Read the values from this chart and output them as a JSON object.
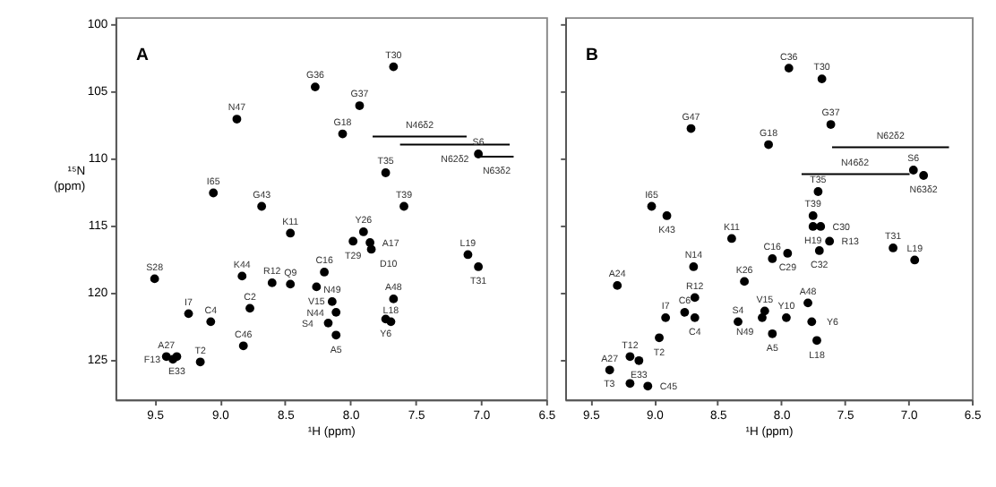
{
  "chart_data": [
    {
      "type": "scatter",
      "xlabel": "¹H (ppm)",
      "ylabel": "¹⁵N (ppm)",
      "xlim": [
        9.8,
        6.5
      ],
      "xticks": [
        9.5,
        {
          "value": 9,
          "label": "9.0"
        },
        8.5,
        {
          "value": 8,
          "label": "8.0"
        },
        7.5,
        {
          "value": 7,
          "label": "7.0"
        },
        6.5
      ],
      "ylim": [
        128,
        99.5
      ],
      "yticks": [
        100,
        105,
        110,
        115,
        120,
        125
      ],
      "marker": "circle",
      "grid": false,
      "series": [
        {
          "color": "#000000",
          "x": [
            7.67,
            8.27,
            7.93,
            8.87,
            8.06,
            7.02,
            7.73,
            9.05,
            8.68,
            7.59,
            8.46,
            7.9,
            7.98,
            7.85,
            7.84,
            7.1,
            7.02,
            9.5,
            8.2,
            8.83,
            8.6,
            8.46,
            8.26,
            7.67,
            8.14,
            9.24,
            8.77,
            9.07,
            8.11,
            7.73,
            7.69,
            8.17,
            8.11,
            8.82,
            9.41,
            9.33,
            9.36,
            9.15
          ],
          "values": [
            103.2,
            104.7,
            106.1,
            107.1,
            108.2,
            109.7,
            111.1,
            112.6,
            113.6,
            113.6,
            115.6,
            115.5,
            116.2,
            116.3,
            116.8,
            117.2,
            118.1,
            119.0,
            118.5,
            118.8,
            119.3,
            119.4,
            119.6,
            120.5,
            120.7,
            121.6,
            121.2,
            122.2,
            121.5,
            122.0,
            122.2,
            122.3,
            123.2,
            124.0,
            124.8,
            124.8,
            125.0,
            125.2
          ]
        },
        {
          "type": "line",
          "marker": "none",
          "color": "#000000",
          "x": [
            7.83,
            7.11
          ],
          "values": [
            108.4,
            108.4
          ]
        },
        {
          "type": "line",
          "marker": "none",
          "color": "#000000",
          "x": [
            7.62,
            6.78
          ],
          "values": [
            109.0,
            109.0
          ]
        },
        {
          "type": "line",
          "marker": "none",
          "color": "#000000",
          "x": [
            7.02,
            6.75
          ],
          "values": [
            109.9,
            109.9
          ]
        }
      ],
      "annotations": [
        "A",
        {
          "text": "T30",
          "x": 7.67,
          "y": 103.2
        },
        {
          "text": "G36",
          "x": 8.27,
          "y": 104.7
        },
        {
          "text": "G37",
          "x": 7.93,
          "y": 106.1
        },
        {
          "text": "N47",
          "x": 8.87,
          "y": 107.1
        },
        {
          "text": "G18",
          "x": 8.06,
          "y": 108.2
        },
        {
          "text": "S6",
          "x": 7.02,
          "y": 109.7
        },
        {
          "text": "T35",
          "x": 7.73,
          "y": 111.1
        },
        {
          "text": "I65",
          "x": 9.05,
          "y": 112.6
        },
        {
          "text": "G43",
          "x": 8.68,
          "y": 113.6
        },
        {
          "text": "T39",
          "x": 7.59,
          "y": 113.6
        },
        {
          "text": "K11",
          "x": 8.46,
          "y": 115.6
        },
        {
          "text": "Y26",
          "x": 7.9,
          "y": 115.5
        },
        {
          "text": "T29",
          "x": 7.98,
          "y": 116.2
        },
        {
          "text": "A17",
          "x": 7.85,
          "y": 116.3
        },
        {
          "text": "D10",
          "x": 7.84,
          "y": 116.8
        },
        {
          "text": "L19",
          "x": 7.1,
          "y": 117.2
        },
        {
          "text": "T31",
          "x": 7.02,
          "y": 118.1
        },
        {
          "text": "S28",
          "x": 9.5,
          "y": 119.0
        },
        {
          "text": "C16",
          "x": 8.2,
          "y": 118.5
        },
        {
          "text": "K44",
          "x": 8.83,
          "y": 118.8
        },
        {
          "text": "R12",
          "x": 8.6,
          "y": 119.3
        },
        {
          "text": "Q9",
          "x": 8.46,
          "y": 119.4
        },
        {
          "text": "V15",
          "x": 8.26,
          "y": 119.6
        },
        {
          "text": "A48",
          "x": 7.67,
          "y": 120.5
        },
        {
          "text": "N49",
          "x": 8.14,
          "y": 120.7
        },
        {
          "text": "I7",
          "x": 9.24,
          "y": 121.6
        },
        {
          "text": "C2",
          "x": 8.77,
          "y": 121.2
        },
        {
          "text": "C4",
          "x": 9.07,
          "y": 122.2
        },
        {
          "text": "N44",
          "x": 8.11,
          "y": 121.5
        },
        {
          "text": "Y6",
          "x": 7.73,
          "y": 122.0
        },
        {
          "text": "L18",
          "x": 7.69,
          "y": 122.2
        },
        {
          "text": "S4",
          "x": 8.17,
          "y": 122.3
        },
        {
          "text": "A5",
          "x": 8.11,
          "y": 123.2
        },
        {
          "text": "C46",
          "x": 8.82,
          "y": 124.0
        },
        {
          "text": "A27",
          "x": 9.41,
          "y": 124.8
        },
        {
          "text": "E33",
          "x": 9.33,
          "y": 124.8
        },
        {
          "text": "F13",
          "x": 9.36,
          "y": 125.0
        },
        {
          "text": "T2",
          "x": 9.15,
          "y": 125.2
        },
        {
          "text": "N46δ2",
          "x": 7.47,
          "y": 108.4
        },
        {
          "text": "N62δ2",
          "x": 7.2,
          "y": 109.0
        },
        {
          "text": "N63δ2",
          "x": 6.88,
          "y": 109.9
        }
      ]
    },
    {
      "type": "scatter",
      "xlabel": "¹H (ppm)",
      "xlim": [
        9.7,
        6.5
      ],
      "xticks": [
        9.5,
        {
          "value": 9,
          "label": "9.0"
        },
        8.5,
        {
          "value": 8,
          "label": "8.0"
        },
        7.5,
        {
          "value": 7,
          "label": "7.0"
        },
        6.5
      ],
      "ylim": [
        128,
        99.5
      ],
      "yticks": [
        100,
        105,
        110,
        115,
        120,
        125
      ],
      "tick_labels": "x",
      "marker": "circle",
      "grid": false,
      "series": [
        {
          "color": "#000000",
          "x": [
            7.94,
            7.68,
            7.61,
            8.71,
            8.1,
            6.96,
            6.88,
            7.71,
            7.75,
            9.02,
            8.9,
            8.39,
            7.75,
            7.69,
            7.62,
            8.07,
            7.95,
            7.7,
            7.12,
            6.95,
            8.69,
            9.29,
            8.29,
            8.68,
            7.79,
            8.91,
            8.76,
            8.68,
            8.13,
            7.96,
            7.76,
            8.34,
            8.15,
            8.07,
            7.72,
            8.96,
            9.19,
            9.12,
            9.35,
            9.19,
            9.05
          ],
          "values": [
            103.3,
            104.1,
            107.5,
            107.8,
            109.0,
            110.9,
            111.3,
            112.5,
            114.3,
            113.6,
            114.3,
            116.0,
            115.1,
            115.1,
            116.2,
            117.5,
            117.1,
            116.9,
            116.7,
            117.6,
            118.1,
            119.5,
            119.2,
            120.4,
            120.8,
            121.9,
            121.5,
            121.9,
            121.4,
            121.9,
            122.2,
            122.2,
            121.9,
            123.1,
            123.6,
            123.4,
            124.8,
            125.1,
            125.8,
            126.8,
            127.0
          ]
        },
        {
          "type": "line",
          "marker": "none",
          "color": "#000000",
          "x": [
            7.6,
            6.68
          ],
          "values": [
            109.2,
            109.2
          ]
        },
        {
          "type": "line",
          "marker": "none",
          "color": "#000000",
          "x": [
            7.84,
            6.99
          ],
          "values": [
            111.2,
            111.2
          ]
        }
      ],
      "annotations": [
        "B",
        {
          "text": "C36",
          "x": 7.94,
          "y": 103.3
        },
        {
          "text": "T30",
          "x": 7.68,
          "y": 104.1
        },
        {
          "text": "G37",
          "x": 7.61,
          "y": 107.5
        },
        {
          "text": "G47",
          "x": 8.71,
          "y": 107.8
        },
        {
          "text": "G18",
          "x": 8.1,
          "y": 109.0
        },
        {
          "text": "S6",
          "x": 6.96,
          "y": 110.9
        },
        {
          "text": "T35",
          "x": 7.71,
          "y": 112.5
        },
        {
          "text": "T39",
          "x": 7.75,
          "y": 114.3
        },
        {
          "text": "I65",
          "x": 9.02,
          "y": 113.6
        },
        {
          "text": "K43",
          "x": 8.9,
          "y": 114.3
        },
        {
          "text": "K11",
          "x": 8.39,
          "y": 116.0
        },
        {
          "text": "H19",
          "x": 7.75,
          "y": 115.1
        },
        {
          "text": "C30",
          "x": 7.69,
          "y": 115.1
        },
        {
          "text": "R13",
          "x": 7.62,
          "y": 116.2
        },
        {
          "text": "C16",
          "x": 8.07,
          "y": 117.5
        },
        {
          "text": "C29",
          "x": 7.95,
          "y": 117.1
        },
        {
          "text": "C32",
          "x": 7.7,
          "y": 116.9
        },
        {
          "text": "T31",
          "x": 7.12,
          "y": 116.7
        },
        {
          "text": "L19",
          "x": 6.95,
          "y": 117.6
        },
        {
          "text": "N14",
          "x": 8.69,
          "y": 118.1
        },
        {
          "text": "A24",
          "x": 9.29,
          "y": 119.5
        },
        {
          "text": "K26",
          "x": 8.29,
          "y": 119.2
        },
        {
          "text": "R12",
          "x": 8.68,
          "y": 120.4
        },
        {
          "text": "A48",
          "x": 7.79,
          "y": 120.8
        },
        {
          "text": "I7",
          "x": 8.91,
          "y": 121.9
        },
        {
          "text": "C6",
          "x": 8.76,
          "y": 121.5
        },
        {
          "text": "C4",
          "x": 8.68,
          "y": 121.9
        },
        {
          "text": "V15",
          "x": 8.13,
          "y": 121.4
        },
        {
          "text": "Y10",
          "x": 7.96,
          "y": 121.9
        },
        {
          "text": "Y6",
          "x": 7.76,
          "y": 122.2
        },
        {
          "text": "S4",
          "x": 8.34,
          "y": 122.2
        },
        {
          "text": "N49",
          "x": 8.15,
          "y": 121.9
        },
        {
          "text": "A5",
          "x": 8.07,
          "y": 123.1
        },
        {
          "text": "L18",
          "x": 7.72,
          "y": 123.6
        },
        {
          "text": "T2",
          "x": 8.96,
          "y": 123.4
        },
        {
          "text": "T12",
          "x": 9.19,
          "y": 124.8
        },
        {
          "text": "E33",
          "x": 9.12,
          "y": 125.1
        },
        {
          "text": "A27",
          "x": 9.35,
          "y": 125.8
        },
        {
          "text": "T3",
          "x": 9.19,
          "y": 126.8
        },
        {
          "text": "C45",
          "x": 9.05,
          "y": 127.0
        },
        {
          "text": "N62δ2",
          "x": 7.14,
          "y": 109.2
        },
        {
          "text": "N46δ2",
          "x": 7.42,
          "y": 111.2
        },
        {
          "text": "N63δ2",
          "x": 6.88,
          "y": 111.3
        }
      ]
    }
  ]
}
